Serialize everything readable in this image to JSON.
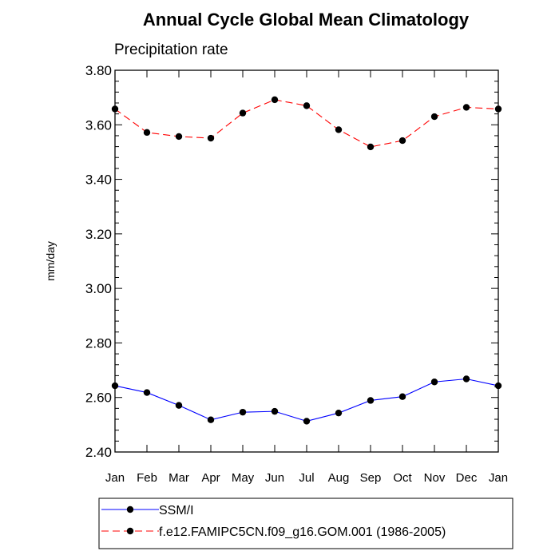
{
  "chart_data": {
    "type": "line",
    "title": "Annual Cycle Global Mean Climatology",
    "subtitle": "Precipitation rate",
    "ylabel": "mm/day",
    "xlabel": "",
    "ylim": [
      2.4,
      3.8
    ],
    "yticks": [
      "2.40",
      "2.60",
      "2.80",
      "3.00",
      "3.20",
      "3.40",
      "3.60",
      "3.80"
    ],
    "categories": [
      "Jan",
      "Feb",
      "Mar",
      "Apr",
      "May",
      "Jun",
      "Jul",
      "Aug",
      "Sep",
      "Oct",
      "Nov",
      "Dec",
      "Jan"
    ],
    "legend_position": "bottom",
    "series": [
      {
        "name": "SSM/I",
        "color": "#0000ff",
        "dash": "solid",
        "marker": "filled-circle",
        "values": [
          2.643,
          2.618,
          2.571,
          2.518,
          2.546,
          2.549,
          2.513,
          2.543,
          2.589,
          2.603,
          2.657,
          2.668,
          2.643
        ]
      },
      {
        "name": "f.e12.FAMIPC5CN.f09_g16.GOM.001 (1986-2005)",
        "color": "#ff0000",
        "dash": "dashed",
        "marker": "filled-circle",
        "values": [
          3.658,
          3.572,
          3.557,
          3.551,
          3.643,
          3.692,
          3.67,
          3.582,
          3.519,
          3.542,
          3.63,
          3.664,
          3.658
        ]
      }
    ]
  }
}
